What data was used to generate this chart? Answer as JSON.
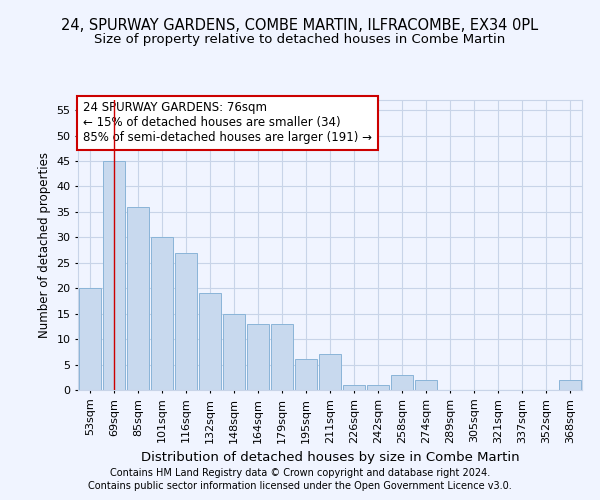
{
  "title": "24, SPURWAY GARDENS, COMBE MARTIN, ILFRACOMBE, EX34 0PL",
  "subtitle": "Size of property relative to detached houses in Combe Martin",
  "xlabel": "Distribution of detached houses by size in Combe Martin",
  "ylabel": "Number of detached properties",
  "categories": [
    "53sqm",
    "69sqm",
    "85sqm",
    "101sqm",
    "116sqm",
    "132sqm",
    "148sqm",
    "164sqm",
    "179sqm",
    "195sqm",
    "211sqm",
    "226sqm",
    "242sqm",
    "258sqm",
    "274sqm",
    "289sqm",
    "305sqm",
    "321sqm",
    "337sqm",
    "352sqm",
    "368sqm"
  ],
  "values": [
    20,
    45,
    36,
    30,
    27,
    19,
    15,
    13,
    13,
    6,
    7,
    1,
    1,
    3,
    2,
    0,
    0,
    0,
    0,
    0,
    2
  ],
  "bar_color": "#c8d9ee",
  "bar_edge_color": "#8ab4d8",
  "grid_color": "#c8d4e8",
  "background_color": "#f0f4ff",
  "annotation_line1": "24 SPURWAY GARDENS: 76sqm",
  "annotation_line2": "← 15% of detached houses are smaller (34)",
  "annotation_line3": "85% of semi-detached houses are larger (191) →",
  "annotation_box_color": "#ffffff",
  "annotation_border_color": "#cc0000",
  "vline_x_index": 1,
  "vline_color": "#cc0000",
  "ylim": [
    0,
    57
  ],
  "yticks": [
    0,
    5,
    10,
    15,
    20,
    25,
    30,
    35,
    40,
    45,
    50,
    55
  ],
  "footer1": "Contains HM Land Registry data © Crown copyright and database right 2024.",
  "footer2": "Contains public sector information licensed under the Open Government Licence v3.0.",
  "title_fontsize": 10.5,
  "subtitle_fontsize": 9.5,
  "xlabel_fontsize": 9.5,
  "ylabel_fontsize": 8.5,
  "tick_fontsize": 8,
  "annotation_fontsize": 8.5,
  "footer_fontsize": 7
}
